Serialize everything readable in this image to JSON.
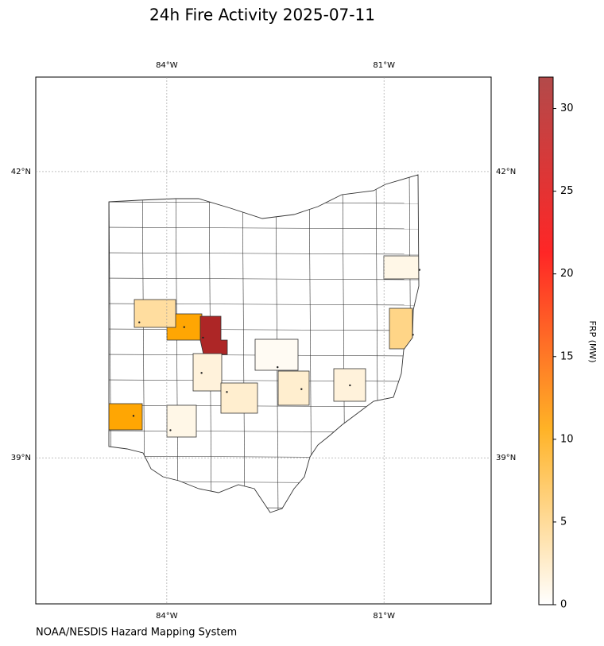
{
  "map": {
    "title": "24h Fire Activity 2025-07-11",
    "source": "NOAA/NESDIS Hazard Mapping System",
    "lonlim": [
      -85.81,
      -79.52
    ],
    "latlim": [
      37.47,
      42.99
    ],
    "lon_ticks": [
      {
        "value": -84,
        "label": "84°W"
      },
      {
        "value": -81,
        "label": "81°W"
      }
    ],
    "lat_ticks": [
      {
        "value": 42,
        "label": "42°N"
      },
      {
        "value": 39,
        "label": "39°N"
      }
    ],
    "grid": true,
    "colorbar": {
      "label": "FRP (MW)",
      "lim": [
        0,
        31.9
      ],
      "ticks": [
        0,
        5,
        10,
        15,
        20,
        25,
        30
      ],
      "colors": [
        "#ffffff",
        "#ffa500",
        "#ff0000",
        "#a52a2a"
      ]
    },
    "fires": [
      {
        "lon": -84.46,
        "lat": 39.44,
        "frp": 10.5
      },
      {
        "lon": -83.76,
        "lat": 40.37,
        "frp": 10.5
      },
      {
        "lon": -83.5,
        "lat": 40.26,
        "frp": 31
      },
      {
        "lon": -84.38,
        "lat": 40.42,
        "frp": 4
      },
      {
        "lon": -80.6,
        "lat": 40.29,
        "frp": 5
      },
      {
        "lon": -80.51,
        "lat": 40.97,
        "frp": 1
      },
      {
        "lon": -83.52,
        "lat": 39.89,
        "frp": 1.5
      },
      {
        "lon": -83.17,
        "lat": 39.69,
        "frp": 2
      },
      {
        "lon": -82.14,
        "lat": 39.72,
        "frp": 2
      },
      {
        "lon": -81.47,
        "lat": 39.76,
        "frp": 1.5
      },
      {
        "lon": -82.47,
        "lat": 39.95,
        "frp": 0.5
      },
      {
        "lon": -83.95,
        "lat": 39.29,
        "frp": 1
      }
    ]
  }
}
